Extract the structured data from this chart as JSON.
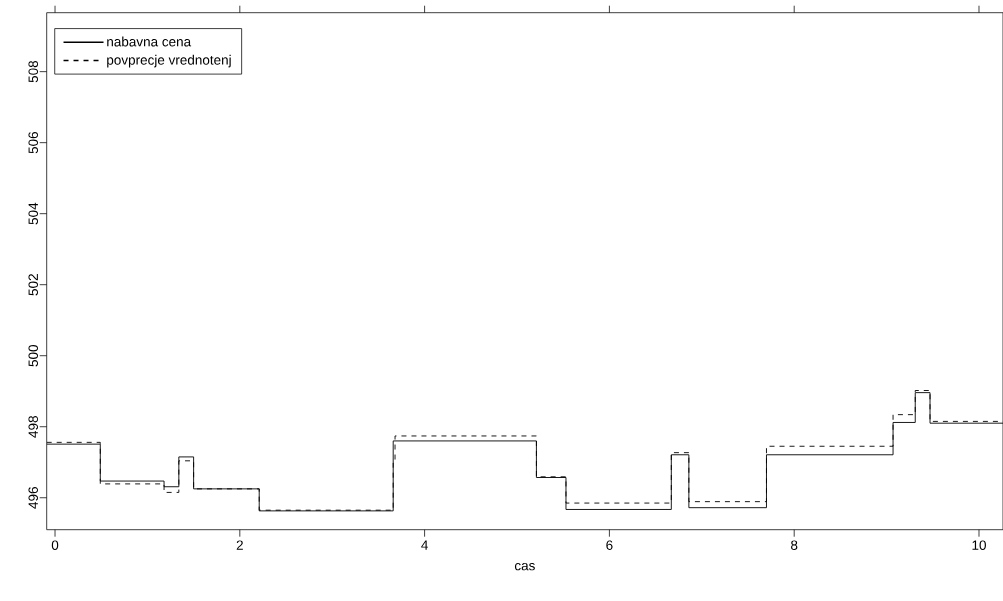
{
  "chart_data": {
    "type": "step",
    "xlabel": "cas",
    "xlim": [
      -0.09,
      10.26
    ],
    "ylim": [
      495.1,
      509.66
    ],
    "xticks": [
      0,
      2,
      4,
      6,
      8,
      10
    ],
    "yticks": [
      496,
      498,
      500,
      502,
      504,
      506,
      508
    ],
    "legend": "top left",
    "grid": false,
    "series": [
      {
        "name": "nabavna cena",
        "color": "#000000",
        "line_style": "solid",
        "x": [
          -0.09,
          0.49,
          1.18,
          1.34,
          1.5,
          2.21,
          3.66,
          5.21,
          5.53,
          6.67,
          6.86,
          7.7,
          9.07,
          9.31,
          9.47,
          10.26
        ],
        "values": [
          497.51,
          496.47,
          496.31,
          497.15,
          496.25,
          495.63,
          497.6,
          496.57,
          495.67,
          497.21,
          495.72,
          497.21,
          498.12,
          498.96,
          498.1,
          498.1
        ]
      },
      {
        "name": "povprecje vrednotenj",
        "color": "#000000",
        "line_style": "dashed",
        "x": [
          -0.09,
          0.49,
          1.18,
          1.34,
          1.5,
          2.21,
          3.66,
          3.68,
          5.21,
          5.53,
          6.67,
          6.86,
          7.7,
          9.07,
          9.31,
          9.47,
          10.26
        ],
        "values": [
          497.56,
          496.39,
          496.15,
          497.04,
          496.25,
          495.65,
          496.98,
          497.74,
          496.59,
          495.85,
          497.27,
          495.89,
          497.45,
          498.34,
          499.02,
          498.15,
          498.15
        ]
      }
    ]
  }
}
